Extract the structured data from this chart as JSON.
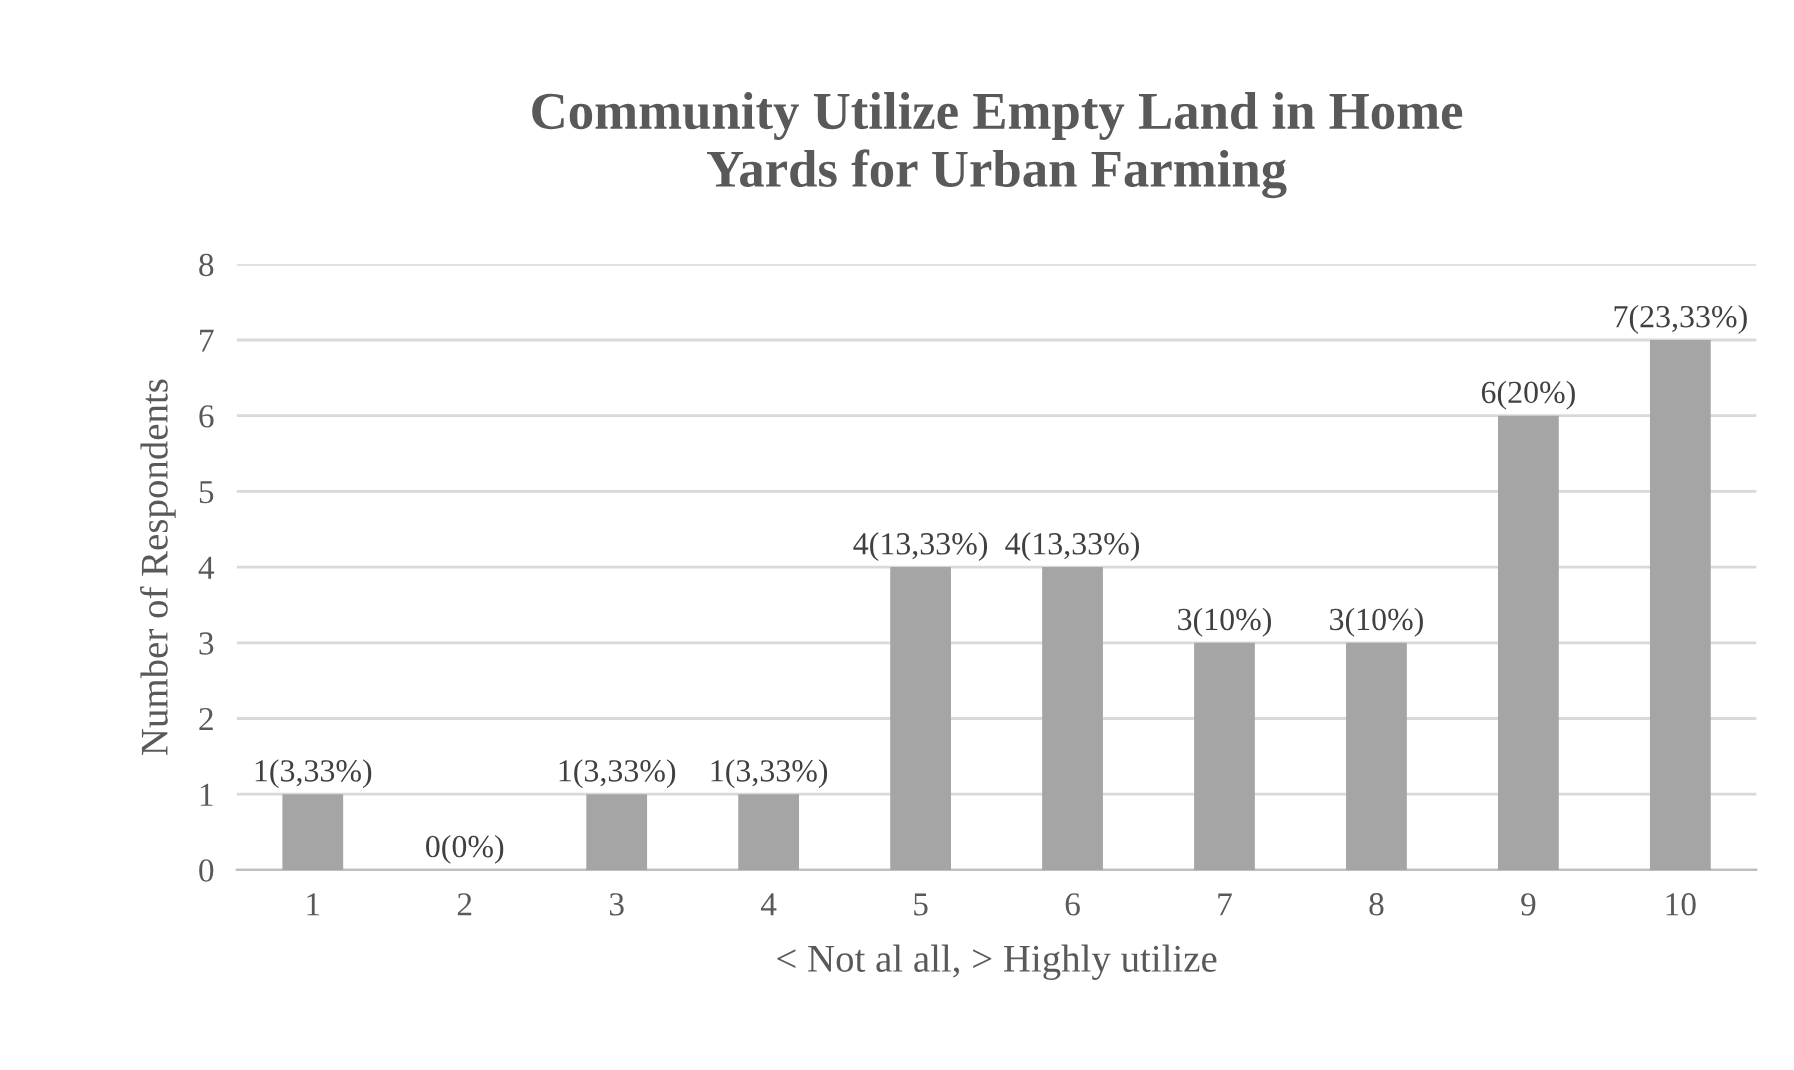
{
  "chart_data": {
    "type": "bar",
    "title": "Community Utilize Empty Land in Home\nYards for Urban Farming",
    "xlabel": "< Not al all, > Highly utilize",
    "ylabel": "Number of Respondents",
    "categories": [
      "1",
      "2",
      "3",
      "4",
      "5",
      "6",
      "7",
      "8",
      "9",
      "10"
    ],
    "values": [
      1,
      0,
      1,
      1,
      4,
      4,
      3,
      3,
      6,
      7
    ],
    "value_labels": [
      "1(3,33%)",
      "0(0%)",
      "1(3,33%)",
      "1(3,33%)",
      "4(13,33%)",
      "4(13,33%)",
      "3(10%)",
      "3(10%)",
      "6(20%)",
      "7(23,33%)"
    ],
    "color": "#a5a5a5",
    "ylim": [
      0,
      8
    ],
    "yticks": [
      0,
      1,
      2,
      3,
      4,
      5,
      6,
      7,
      8
    ],
    "grid": "y",
    "legend": false
  }
}
